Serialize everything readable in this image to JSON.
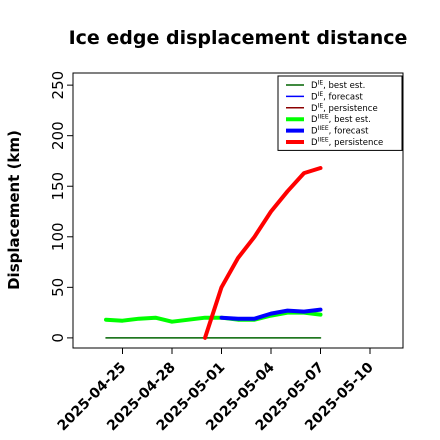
{
  "chart_data": {
    "type": "line",
    "title": "Ice edge displacement distance",
    "ylabel": "Displacement (km)",
    "xlabel": "",
    "ylim": [
      -10,
      262
    ],
    "xlim": [
      "2025-04-22",
      "2025-05-12"
    ],
    "yticks": [
      0,
      50,
      100,
      150,
      200,
      250
    ],
    "xticks": [
      "2025-04-25",
      "2025-04-28",
      "2025-05-01",
      "2025-05-04",
      "2025-05-07",
      "2025-05-10"
    ],
    "highlight_xtick": "2025-05-01",
    "highlight_color": "#2e8b2e",
    "grid": false,
    "legend_position": "top-right",
    "series": [
      {
        "legend_base": "D",
        "legend_sup": "IE",
        "legend_suffix": ", best est.",
        "color": "#006400",
        "width": 1.5,
        "x": [
          "2025-04-24",
          "2025-05-07"
        ],
        "y": [
          0,
          0
        ]
      },
      {
        "legend_base": "D",
        "legend_sup": "IE",
        "legend_suffix": ", forecast",
        "color": "#0000ff",
        "width": 1.5,
        "x": [],
        "y": []
      },
      {
        "legend_base": "D",
        "legend_sup": "IE",
        "legend_suffix": ", persistence",
        "color": "#8b0000",
        "width": 1.5,
        "x": [],
        "y": []
      },
      {
        "legend_base": "D",
        "legend_sup": "IIEE",
        "legend_suffix": ", best est.",
        "color": "#00ff00",
        "width": 4,
        "x": [
          "2025-04-24",
          "2025-04-25",
          "2025-04-26",
          "2025-04-27",
          "2025-04-28",
          "2025-04-29",
          "2025-04-30",
          "2025-05-01",
          "2025-05-02",
          "2025-05-03",
          "2025-05-04",
          "2025-05-05",
          "2025-05-06",
          "2025-05-07"
        ],
        "y": [
          18,
          17,
          19,
          20,
          16,
          18,
          20,
          20,
          18,
          18,
          22,
          25,
          25,
          23
        ]
      },
      {
        "legend_base": "D",
        "legend_sup": "IIEE",
        "legend_suffix": ", forecast",
        "color": "#0000ff",
        "width": 4,
        "x": [
          "2025-05-01",
          "2025-05-02",
          "2025-05-03",
          "2025-05-04",
          "2025-05-05",
          "2025-05-06",
          "2025-05-07"
        ],
        "y": [
          20,
          19,
          19,
          24,
          27,
          26,
          28
        ]
      },
      {
        "legend_base": "D",
        "legend_sup": "IIEE",
        "legend_suffix": ", persistence",
        "color": "#ff0000",
        "width": 4,
        "x": [
          "2025-04-30",
          "2025-05-01",
          "2025-05-02",
          "2025-05-03",
          "2025-05-04",
          "2025-05-05",
          "2025-05-06",
          "2025-05-07"
        ],
        "y": [
          0,
          50,
          79,
          100,
          125,
          145,
          163,
          168
        ]
      }
    ]
  }
}
